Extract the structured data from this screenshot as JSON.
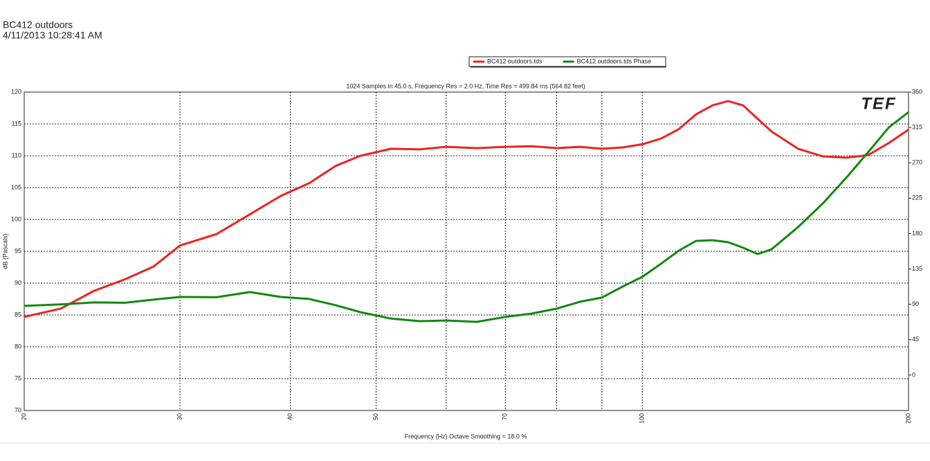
{
  "chart_data": {
    "type": "line",
    "title": "BC412 outdoors",
    "date": "4/11/2013 10:28:41 AM",
    "subtitle": "1024 Samples in 45.0 s, Frequency Res = 2.0 Hz, Time Res = 499.84 ms (564.82 feet)",
    "ylabel": "dB (Pascals)",
    "xlabel": "Frequency (Hz) Octave Smoothing = 18.0 %",
    "logo": "TEF",
    "xscale": "log",
    "grid": true,
    "legend": "top",
    "x": [
      20,
      22,
      24,
      26,
      28,
      30,
      33,
      36,
      39,
      42,
      45,
      48,
      52,
      56,
      60,
      65,
      70,
      75,
      80,
      85,
      90,
      95,
      100,
      105,
      110,
      115,
      120,
      125,
      130,
      135,
      140,
      150,
      160,
      170,
      180,
      190,
      200
    ],
    "series": [
      {
        "name": "BC412 outdoors.tds",
        "color": "#ee2222",
        "axis": "y",
        "values": [
          84.7,
          86.0,
          88.8,
          90.6,
          92.6,
          95.9,
          97.7,
          100.8,
          103.7,
          105.7,
          108.4,
          110.0,
          111.1,
          111.0,
          111.4,
          111.2,
          111.4,
          111.5,
          111.2,
          111.4,
          111.1,
          111.3,
          111.8,
          112.7,
          114.2,
          116.5,
          117.9,
          118.6,
          117.9,
          115.8,
          113.8,
          111.1,
          109.9,
          109.7,
          110.1,
          112.0,
          114.1
        ]
      },
      {
        "name": "BC412 outdoors.tds Phase",
        "color": "#118811",
        "axis": "y2",
        "values": [
          88,
          90,
          92.4,
          92,
          96,
          99.4,
          99,
          105.6,
          99.4,
          96.8,
          88.9,
          80,
          71.8,
          68.6,
          69.5,
          67.7,
          74,
          78.3,
          84.5,
          93.3,
          98.6,
          112.6,
          125,
          141.7,
          158.5,
          170.7,
          171.6,
          169,
          162,
          154,
          160,
          188.3,
          218.3,
          250.8,
          283.4,
          315,
          334.5
        ]
      }
    ],
    "xlim": [
      20,
      200
    ],
    "xticks": [
      20,
      30,
      40,
      50,
      70,
      100,
      200
    ],
    "xminor": [
      60,
      80,
      90
    ],
    "ylim": [
      70,
      120
    ],
    "yticks": [
      70,
      75,
      80,
      85,
      90,
      95,
      100,
      105,
      110,
      115,
      120
    ],
    "y2lim": [
      -45,
      360
    ],
    "y2ticks": [
      0,
      45,
      90,
      135,
      180,
      225,
      270,
      315,
      360
    ]
  }
}
